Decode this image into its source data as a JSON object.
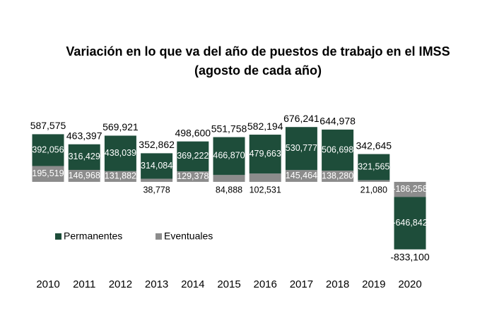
{
  "chart_data": {
    "type": "bar",
    "stacked": true,
    "title": "Variación en lo que va del año de puestos de trabajo en el IMSS",
    "subtitle": "(agosto de cada año)",
    "categories": [
      "2010",
      "2011",
      "2012",
      "2013",
      "2014",
      "2015",
      "2016",
      "2017",
      "2018",
      "2019",
      "2020"
    ],
    "series": [
      {
        "name": "Eventuales",
        "color": "#8c8c8c",
        "values": [
          195519,
          146968,
          131882,
          38778,
          129378,
          84888,
          102531,
          145464,
          138280,
          21080,
          -186258
        ],
        "value_labels": [
          "195,519",
          "146,968",
          "131,882",
          "38,778",
          "129,378",
          "84,888",
          "102,531",
          "145,464",
          "138,280",
          "21,080",
          "-186,258"
        ]
      },
      {
        "name": "Permanentes",
        "color": "#1e4d3a",
        "values": [
          392056,
          316429,
          438039,
          314084,
          369222,
          466870,
          479663,
          530777,
          506698,
          321565,
          -646842
        ],
        "value_labels": [
          "392,056",
          "316,429",
          "438,039",
          "314,084",
          "369,222",
          "466,870",
          "479,663",
          "530,777",
          "506,698",
          "321,565",
          "-646,842"
        ]
      }
    ],
    "totals": {
      "values": [
        587575,
        463397,
        569921,
        352862,
        498600,
        551758,
        582194,
        676241,
        644978,
        342645,
        -833100
      ],
      "value_labels": [
        "587,575",
        "463,397",
        "569,921",
        "352,862",
        "498,600",
        "551,758",
        "582,194",
        "676,241",
        "644,978",
        "342,645",
        "-833,100"
      ]
    },
    "ylim": [
      -900000,
      700000
    ]
  }
}
